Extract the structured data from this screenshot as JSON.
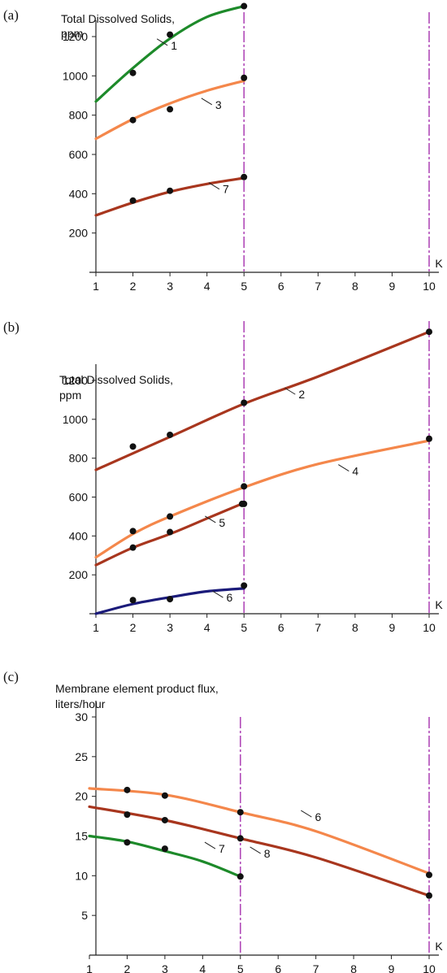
{
  "chart_data": [
    {
      "panel_label": "(a)",
      "type": "line",
      "ylabel_lines": [
        "Total Dissolved Solids,",
        "ppm"
      ],
      "xlabel": "K",
      "xticks": [
        1,
        2,
        3,
        4,
        5,
        6,
        7,
        8,
        9,
        10
      ],
      "yticks": [
        200,
        400,
        600,
        800,
        1000,
        1200
      ],
      "xlim": [
        1,
        10.2
      ],
      "ylim": [
        0,
        1350
      ],
      "vlines": [
        5,
        10
      ],
      "series": [
        {
          "name": "1",
          "color": "#1d8a2a",
          "curve": {
            "x": [
              1,
              2,
              3,
              4,
              5
            ],
            "y": [
              870,
              1040,
              1190,
              1300,
              1355
            ]
          },
          "points": {
            "x": [
              2,
              3,
              5
            ],
            "y": [
              1015,
              1210,
              1355
            ]
          },
          "label_at": [
            3.0,
            1147
          ]
        },
        {
          "name": "3",
          "color": "#f4874b",
          "curve": {
            "x": [
              1,
              2,
              3,
              4,
              5
            ],
            "y": [
              680,
              780,
              860,
              925,
              975
            ]
          },
          "points": {
            "x": [
              2,
              3,
              5
            ],
            "y": [
              775,
              830,
              990
            ]
          },
          "label_at": [
            4.2,
            845
          ]
        },
        {
          "name": "7",
          "color": "#a8361e",
          "curve": {
            "x": [
              1,
              2,
              3,
              4,
              5
            ],
            "y": [
              290,
              355,
              410,
              450,
              480
            ]
          },
          "points": {
            "x": [
              2,
              3,
              5
            ],
            "y": [
              365,
              415,
              485
            ]
          },
          "label_at": [
            4.4,
            415
          ]
        }
      ]
    },
    {
      "panel_label": "(b)",
      "type": "line",
      "ylabel_lines": [
        "Total Dissolved Solids,",
        "ppm"
      ],
      "xlabel": "K",
      "xticks": [
        1,
        2,
        3,
        4,
        5,
        6,
        7,
        8,
        9,
        10
      ],
      "yticks": [
        200,
        400,
        600,
        800,
        1000,
        1200
      ],
      "xlim": [
        1,
        10.2
      ],
      "ylim": [
        0,
        1350
      ],
      "vlines": [
        5,
        10
      ],
      "series": [
        {
          "name": "2",
          "color": "#a8361e",
          "curve": {
            "x": [
              1,
              3,
              5,
              7,
              10
            ],
            "y": [
              740,
              910,
              1080,
              1220,
              1450
            ]
          },
          "points": {
            "x": [
              2,
              3,
              5,
              10
            ],
            "y": [
              860,
              920,
              1085,
              1450
            ]
          },
          "label_at": [
            6.45,
            1120
          ]
        },
        {
          "name": "4",
          "color": "#f4874b",
          "curve": {
            "x": [
              1,
              2,
              3,
              5,
              7,
              10
            ],
            "y": [
              290,
              410,
              500,
              650,
              770,
              890
            ]
          },
          "points": {
            "x": [
              2,
              3,
              5,
              10
            ],
            "y": [
              425,
              500,
              655,
              900
            ]
          },
          "label_at": [
            7.9,
            725
          ]
        },
        {
          "name": "5",
          "color": "#a8361e",
          "curve": {
            "x": [
              1,
              2,
              3,
              4,
              5
            ],
            "y": [
              250,
              340,
              410,
              490,
              570
            ]
          },
          "points": {
            "x": [
              2,
              3,
              4.95,
              5
            ],
            "y": [
              340,
              420,
              565,
              565
            ]
          },
          "label_at": [
            4.3,
            460
          ]
        },
        {
          "name": "6",
          "color": "#1b1b7a",
          "curve": {
            "x": [
              1,
              2,
              3,
              4,
              5
            ],
            "y": [
              0,
              50,
              85,
              115,
              130
            ]
          },
          "points": {
            "x": [
              2,
              3,
              5
            ],
            "y": [
              70,
              75,
              145
            ]
          },
          "label_at": [
            4.5,
            75
          ]
        }
      ]
    },
    {
      "panel_label": "(c)",
      "type": "line",
      "ylabel_lines": [
        "Membrane element product flux,",
        "liters/hour"
      ],
      "xlabel": "K",
      "xticks": [
        1,
        2,
        3,
        4,
        5,
        6,
        7,
        8,
        9,
        10
      ],
      "yticks": [
        5,
        10,
        15,
        20,
        25,
        30
      ],
      "xlim": [
        1,
        10.2
      ],
      "ylim": [
        0,
        30
      ],
      "vlines": [
        5,
        10
      ],
      "series": [
        {
          "name": "6",
          "color": "#f4874b",
          "curve": {
            "x": [
              1,
              3,
              5,
              7,
              10
            ],
            "y": [
              21,
              20.2,
              18,
              15.6,
              10.3
            ]
          },
          "points": {
            "x": [
              2,
              3,
              5,
              10
            ],
            "y": [
              20.8,
              20.1,
              18,
              10.1
            ]
          },
          "label_at": [
            6.95,
            17.2
          ]
        },
        {
          "name": "8",
          "color": "#a8361e",
          "curve": {
            "x": [
              1,
              3,
              5,
              7,
              10
            ],
            "y": [
              18.7,
              17,
              14.7,
              12.3,
              7.5
            ]
          },
          "points": {
            "x": [
              2,
              3,
              5,
              10
            ],
            "y": [
              17.7,
              17,
              14.7,
              7.5
            ]
          },
          "label_at": [
            5.6,
            12.6
          ]
        },
        {
          "name": "7",
          "color": "#1d8a2a",
          "curve": {
            "x": [
              1,
              2,
              3,
              4,
              5
            ],
            "y": [
              15,
              14.3,
              13.1,
              11.8,
              9.9
            ]
          },
          "points": {
            "x": [
              2,
              3,
              5
            ],
            "y": [
              14.2,
              13.4,
              9.9
            ]
          },
          "label_at": [
            4.4,
            13.2
          ]
        }
      ]
    }
  ]
}
